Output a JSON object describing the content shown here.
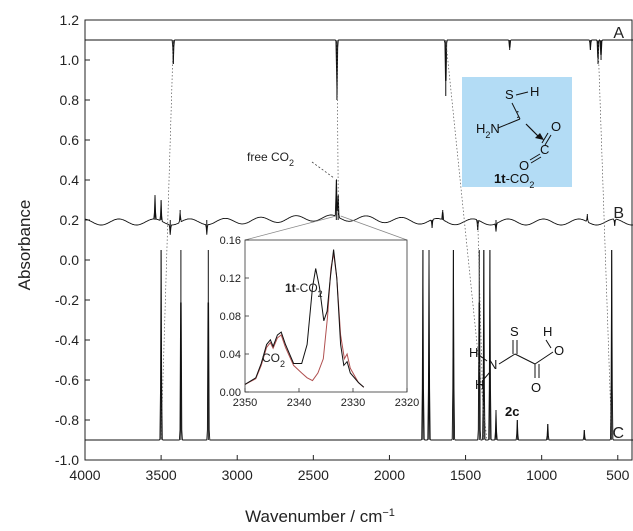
{
  "chart_data": {
    "type": "line",
    "xlabel": "Wavenumber / cm",
    "xlabel_sup": "−1",
    "ylabel": "Absorbance",
    "xlim": [
      4000,
      400
    ],
    "ylim": [
      -1.0,
      1.2
    ],
    "x_ticks": [
      "4000",
      "3500",
      "3000",
      "2500",
      "2000",
      "1500",
      "1000",
      "500"
    ],
    "x_tick_values": [
      4000,
      3500,
      3000,
      2500,
      2000,
      1500,
      1000,
      500
    ],
    "y_ticks": [
      "1.2",
      "1.0",
      "0.8",
      "0.6",
      "0.4",
      "0.2",
      "0.0",
      "-0.2",
      "-0.4",
      "-0.6",
      "-0.8",
      "-1.0"
    ],
    "y_tick_values": [
      1.2,
      1.0,
      0.8,
      0.6,
      0.4,
      0.2,
      0.0,
      -0.2,
      -0.4,
      -0.6,
      -0.8,
      -1.0
    ],
    "series": [
      {
        "name": "A",
        "baseline": 1.1,
        "direction": "down",
        "peaks": [
          [
            3420,
            0.12
          ],
          [
            2345,
            0.3
          ],
          [
            1630,
            0.28
          ],
          [
            1210,
            0.05
          ],
          [
            680,
            0.05
          ],
          [
            630,
            0.12
          ],
          [
            610,
            0.1
          ]
        ]
      },
      {
        "name": "B",
        "baseline": 0.2,
        "direction": "mixed",
        "peaks": [
          [
            3540,
            0.12
          ],
          [
            3500,
            0.1
          ],
          [
            3440,
            -0.05
          ],
          [
            3375,
            0.05
          ],
          [
            3200,
            -0.05
          ],
          [
            2349,
            0.2
          ],
          [
            2337,
            0.12
          ],
          [
            1720,
            -0.04
          ],
          [
            1650,
            0.05
          ],
          [
            1420,
            -0.05
          ],
          [
            1300,
            -0.04
          ],
          [
            700,
            0.03
          ],
          [
            520,
            -0.03
          ]
        ]
      },
      {
        "name": "C",
        "baseline": -0.9,
        "direction": "up",
        "peaks": [
          [
            3500,
            0.95
          ],
          [
            3370,
            0.95
          ],
          [
            3190,
            0.95
          ],
          [
            1780,
            0.95
          ],
          [
            1740,
            0.95
          ],
          [
            1580,
            0.95
          ],
          [
            1410,
            0.95
          ],
          [
            1380,
            0.95
          ],
          [
            1340,
            0.95
          ],
          [
            1300,
            0.15
          ],
          [
            1160,
            0.1
          ],
          [
            960,
            0.08
          ],
          [
            720,
            0.05
          ],
          [
            540,
            0.95
          ]
        ]
      }
    ],
    "annotation": {
      "text": "free CO",
      "sub": "2"
    },
    "inset": {
      "xlim": [
        2350,
        2320
      ],
      "ylim": [
        0.0,
        0.16
      ],
      "x_ticks": [
        "2350",
        "2340",
        "2330",
        "2320"
      ],
      "x_tick_values": [
        2350,
        2340,
        2330,
        2320
      ],
      "y_ticks": [
        "0.00",
        "0.04",
        "0.08",
        "0.12",
        "0.16"
      ],
      "y_tick_values": [
        0.0,
        0.04,
        0.08,
        0.12,
        0.16
      ],
      "label_co2": {
        "text": "CO",
        "sub": "2"
      },
      "label_1t": {
        "bold": "1t",
        "text": "-CO",
        "sub": "2"
      },
      "series_dark": [
        [
          2350,
          0.008
        ],
        [
          2348,
          0.015
        ],
        [
          2347,
          0.03
        ],
        [
          2346,
          0.05
        ],
        [
          2345.3,
          0.055
        ],
        [
          2344.8,
          0.048
        ],
        [
          2344,
          0.06
        ],
        [
          2343.3,
          0.063
        ],
        [
          2342.5,
          0.05
        ],
        [
          2341,
          0.03
        ],
        [
          2339.5,
          0.03
        ],
        [
          2338.5,
          0.05
        ],
        [
          2337.5,
          0.11
        ],
        [
          2336.9,
          0.13
        ],
        [
          2336.2,
          0.11
        ],
        [
          2335.4,
          0.075
        ],
        [
          2334.8,
          0.085
        ],
        [
          2334.2,
          0.12
        ],
        [
          2333.6,
          0.15
        ],
        [
          2333,
          0.12
        ],
        [
          2332.3,
          0.05
        ],
        [
          2331.7,
          0.028
        ],
        [
          2331.1,
          0.032
        ],
        [
          2330.5,
          0.02
        ],
        [
          2329,
          0.01
        ],
        [
          2328,
          0.005
        ]
      ],
      "series_red": [
        [
          2350,
          0.008
        ],
        [
          2348,
          0.014
        ],
        [
          2347,
          0.028
        ],
        [
          2346,
          0.047
        ],
        [
          2345.3,
          0.052
        ],
        [
          2344.8,
          0.046
        ],
        [
          2344,
          0.057
        ],
        [
          2343.3,
          0.06
        ],
        [
          2342.5,
          0.047
        ],
        [
          2341,
          0.028
        ],
        [
          2339.5,
          0.02
        ],
        [
          2338.5,
          0.015
        ],
        [
          2337.5,
          0.012
        ],
        [
          2336.5,
          0.02
        ],
        [
          2335.5,
          0.035
        ],
        [
          2334.7,
          0.08
        ],
        [
          2334.1,
          0.13
        ],
        [
          2333.6,
          0.146
        ],
        [
          2333,
          0.12
        ],
        [
          2332.3,
          0.06
        ],
        [
          2331.6,
          0.035
        ],
        [
          2331.1,
          0.04
        ],
        [
          2330.5,
          0.025
        ],
        [
          2329,
          0.01
        ],
        [
          2328,
          0.005
        ]
      ]
    },
    "structures": {
      "s1": {
        "S": "S",
        "H": "H",
        "N": "H",
        "N2": "N",
        "O1": "O",
        "C": "C",
        "O2": "O",
        "label_bold": "1t",
        "label": "-CO",
        "label_sub": "2"
      },
      "s2": {
        "S": "S",
        "O": "O",
        "H": "H",
        "H2": "H",
        "N": "N",
        "H3": "H",
        "O2": "O",
        "H4": "H",
        "label_bold": "2c"
      }
    },
    "colors": {
      "box": "#b3dcf5",
      "trace": "#111111",
      "inset_red": "#b05050"
    }
  }
}
